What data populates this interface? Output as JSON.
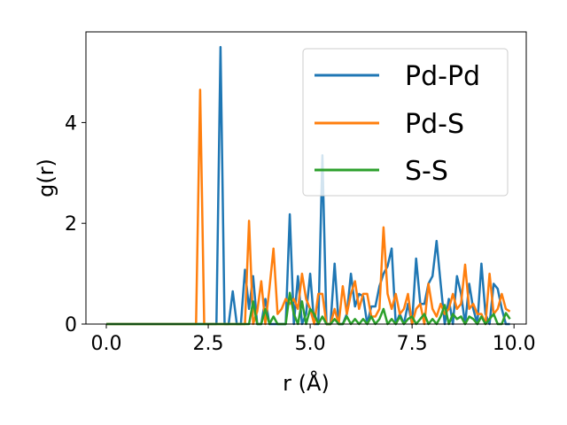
{
  "chart_data": {
    "type": "line",
    "title": "",
    "xlabel": "r (Å)",
    "ylabel": "g(r)",
    "xlim": [
      -0.5,
      10.3
    ],
    "ylim": [
      0,
      5.8
    ],
    "xticks": [
      0.0,
      2.5,
      5.0,
      7.5,
      10.0
    ],
    "xtick_labels": [
      "0.0",
      "2.5",
      "5.0",
      "7.5",
      "10.0"
    ],
    "yticks": [
      0,
      2,
      4
    ],
    "ytick_labels": [
      "0",
      "2",
      "4"
    ],
    "grid": false,
    "legend_position": "top-right",
    "series": [
      {
        "name": "Pd-Pd",
        "color": "#1f77b4",
        "x": [
          0.0,
          2.6,
          2.7,
          2.8,
          2.9,
          3.0,
          3.1,
          3.2,
          3.3,
          3.4,
          3.5,
          3.6,
          3.7,
          3.8,
          3.9,
          4.0,
          4.1,
          4.2,
          4.3,
          4.4,
          4.5,
          4.6,
          4.7,
          4.8,
          4.9,
          5.0,
          5.1,
          5.2,
          5.3,
          5.4,
          5.5,
          5.6,
          5.7,
          5.8,
          5.9,
          6.0,
          6.1,
          6.2,
          6.3,
          6.4,
          6.5,
          6.6,
          6.7,
          6.8,
          6.9,
          7.0,
          7.1,
          7.2,
          7.3,
          7.4,
          7.5,
          7.6,
          7.7,
          7.8,
          7.9,
          8.0,
          8.1,
          8.2,
          8.3,
          8.4,
          8.5,
          8.6,
          8.7,
          8.8,
          8.9,
          9.0,
          9.1,
          9.2,
          9.3,
          9.4,
          9.5,
          9.6,
          9.7,
          9.8,
          9.9
        ],
        "y": [
          0.0,
          0.0,
          0.0,
          5.5,
          0.0,
          0.0,
          0.65,
          0.0,
          0.0,
          1.08,
          0.3,
          0.95,
          0.0,
          0.0,
          0.5,
          0.0,
          0.0,
          0.0,
          0.0,
          0.0,
          2.18,
          0.0,
          0.95,
          0.0,
          0.2,
          1.0,
          0.0,
          0.0,
          3.35,
          0.0,
          0.0,
          1.2,
          0.0,
          0.0,
          0.2,
          1.0,
          0.35,
          0.6,
          0.55,
          0.0,
          0.35,
          0.35,
          0.75,
          1.0,
          1.15,
          1.5,
          0.0,
          0.2,
          0.0,
          0.4,
          0.0,
          1.3,
          0.4,
          0.4,
          0.8,
          0.95,
          1.65,
          0.8,
          0.0,
          0.5,
          0.0,
          0.95,
          0.6,
          0.0,
          0.8,
          0.3,
          0.0,
          1.2,
          0.2,
          0.0,
          0.8,
          0.7,
          0.3,
          0.0,
          0.0
        ]
      },
      {
        "name": "Pd-S",
        "color": "#ff7f0e",
        "x": [
          0.0,
          2.2,
          2.3,
          2.4,
          2.5,
          2.6,
          3.4,
          3.5,
          3.6,
          3.7,
          3.8,
          3.9,
          4.0,
          4.1,
          4.2,
          4.3,
          4.4,
          4.5,
          4.6,
          4.7,
          4.8,
          4.9,
          5.0,
          5.1,
          5.2,
          5.3,
          5.4,
          5.5,
          5.6,
          5.7,
          5.8,
          5.9,
          6.0,
          6.1,
          6.2,
          6.3,
          6.4,
          6.5,
          6.6,
          6.7,
          6.8,
          6.9,
          7.0,
          7.1,
          7.2,
          7.3,
          7.4,
          7.5,
          7.6,
          7.7,
          7.8,
          7.9,
          8.0,
          8.1,
          8.2,
          8.3,
          8.4,
          8.5,
          8.6,
          8.7,
          8.8,
          8.9,
          9.0,
          9.1,
          9.2,
          9.3,
          9.4,
          9.5,
          9.6,
          9.7,
          9.8,
          9.9
        ],
        "y": [
          0.0,
          0.0,
          4.65,
          0.0,
          0.0,
          0.0,
          0.0,
          2.05,
          0.0,
          0.25,
          0.85,
          0.0,
          0.7,
          1.5,
          0.2,
          0.3,
          0.5,
          0.4,
          0.5,
          0.3,
          1.0,
          0.5,
          0.3,
          0.0,
          0.6,
          0.6,
          0.0,
          0.0,
          0.3,
          0.0,
          0.75,
          0.2,
          0.6,
          0.85,
          0.3,
          0.6,
          0.6,
          0.15,
          0.15,
          0.3,
          1.92,
          0.6,
          0.3,
          0.6,
          0.2,
          0.3,
          0.6,
          0.0,
          0.3,
          0.4,
          0.0,
          0.8,
          0.3,
          0.15,
          0.4,
          0.2,
          0.3,
          0.6,
          0.3,
          0.4,
          1.18,
          0.3,
          0.4,
          0.2,
          0.2,
          0.0,
          1.0,
          0.2,
          0.3,
          0.6,
          0.3,
          0.25
        ]
      },
      {
        "name": "S-S",
        "color": "#2ca02c",
        "x": [
          0.0,
          3.5,
          3.6,
          3.7,
          3.8,
          3.9,
          4.0,
          4.1,
          4.2,
          4.3,
          4.4,
          4.5,
          4.6,
          4.7,
          4.8,
          4.9,
          5.0,
          5.1,
          5.2,
          5.3,
          5.4,
          5.5,
          5.6,
          5.7,
          5.8,
          5.9,
          6.0,
          6.1,
          6.2,
          6.3,
          6.4,
          6.5,
          6.6,
          6.7,
          6.8,
          6.9,
          7.0,
          7.1,
          7.2,
          7.3,
          7.4,
          7.5,
          7.6,
          7.7,
          7.8,
          7.9,
          8.0,
          8.1,
          8.2,
          8.3,
          8.4,
          8.5,
          8.6,
          8.7,
          8.8,
          8.9,
          9.0,
          9.1,
          9.2,
          9.3,
          9.4,
          9.5,
          9.6,
          9.7,
          9.8,
          9.9
        ],
        "y": [
          0.0,
          0.0,
          0.45,
          0.0,
          0.0,
          0.3,
          0.0,
          0.15,
          0.0,
          0.0,
          0.0,
          0.62,
          0.2,
          0.0,
          0.45,
          0.0,
          0.3,
          0.2,
          0.0,
          0.15,
          0.0,
          0.0,
          0.1,
          0.0,
          0.0,
          0.15,
          0.0,
          0.1,
          0.0,
          0.1,
          0.0,
          0.15,
          0.0,
          0.1,
          0.3,
          0.0,
          0.1,
          0.0,
          0.15,
          0.0,
          0.1,
          0.15,
          0.0,
          0.1,
          0.2,
          0.0,
          0.1,
          0.0,
          0.15,
          0.38,
          0.0,
          0.2,
          0.1,
          0.15,
          0.0,
          0.15,
          0.1,
          0.0,
          0.15,
          0.0,
          0.1,
          0.2,
          0.0,
          0.0,
          0.22,
          0.1
        ]
      }
    ]
  }
}
